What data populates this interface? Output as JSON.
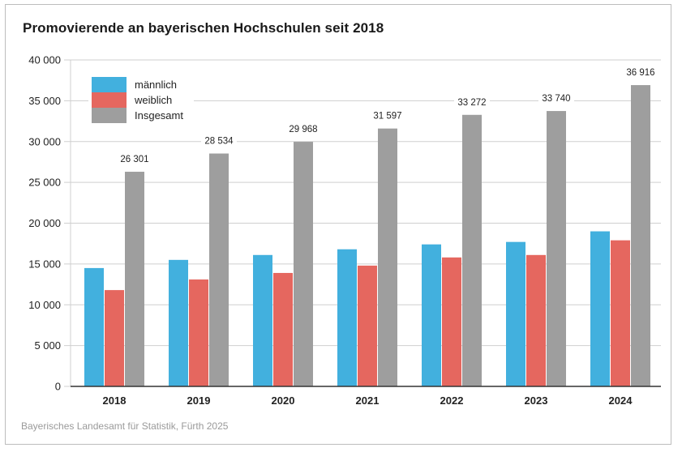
{
  "chart_data": {
    "type": "bar",
    "title": "Promovierende an bayerischen Hochschulen seit 2018",
    "xlabel": "",
    "ylabel": "",
    "categories": [
      "2018",
      "2019",
      "2020",
      "2021",
      "2022",
      "2023",
      "2024"
    ],
    "series": [
      {
        "name": "männlich",
        "color": "#42b0de",
        "values": [
          14500,
          15500,
          16100,
          16800,
          17400,
          17700,
          19000
        ]
      },
      {
        "name": "weiblich",
        "color": "#e5675f",
        "values": [
          11800,
          13100,
          13900,
          14800,
          15800,
          16100,
          17900
        ]
      },
      {
        "name": "Insgesamt",
        "color": "#9e9e9e",
        "values": [
          26301,
          28534,
          29968,
          31597,
          33272,
          33740,
          36916
        ]
      }
    ],
    "data_labels": [
      "26 301",
      "28 534",
      "29 968",
      "31 597",
      "33 272",
      "33 740",
      "36 916"
    ],
    "ylim": [
      0,
      40000
    ],
    "yticks": [
      0,
      5000,
      10000,
      15000,
      20000,
      25000,
      30000,
      35000,
      40000
    ],
    "ytick_labels": [
      "0",
      "5 000",
      "10 000",
      "15 000",
      "20 000",
      "25 000",
      "30 000",
      "35 000",
      "40 000"
    ],
    "grid": true,
    "legend_position": "top-left",
    "source": "Bayerisches Landesamt für Statistik, Fürth 2025"
  }
}
